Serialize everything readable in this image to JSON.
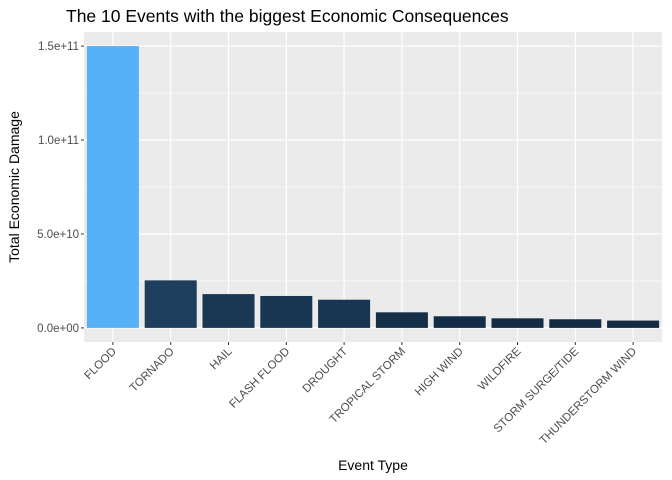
{
  "chart_data": {
    "type": "bar",
    "title": "The 10 Events with the biggest Economic Consequences",
    "xlabel": "Event Type",
    "ylabel": "Total Economic Damage",
    "categories": [
      "FLOOD",
      "TORNADO",
      "HAIL",
      "FLASH FLOOD",
      "DROUGHT",
      "TROPICAL STORM",
      "HIGH WIND",
      "WILDFIRE",
      "STORM SURGE/TIDE",
      "THUNDERSTORM WIND"
    ],
    "values": [
      150000000000,
      25300000000,
      18000000000,
      17000000000,
      15000000000,
      8300000000,
      6200000000,
      5100000000,
      4600000000,
      3900000000
    ],
    "ylim": [
      -7500000000,
      157500000000
    ],
    "yticks": [
      0,
      50000000000,
      100000000000,
      150000000000
    ],
    "ytick_labels": [
      "0.0e+00",
      "5.0e+10",
      "1.0e+11",
      "1.5e+11"
    ],
    "grid": true,
    "legend": "none",
    "colors": {
      "panel_background": "#ebebeb",
      "gridline": "#ffffff",
      "bar_high": "#56b1f7",
      "bar_low": "#132b43"
    }
  }
}
